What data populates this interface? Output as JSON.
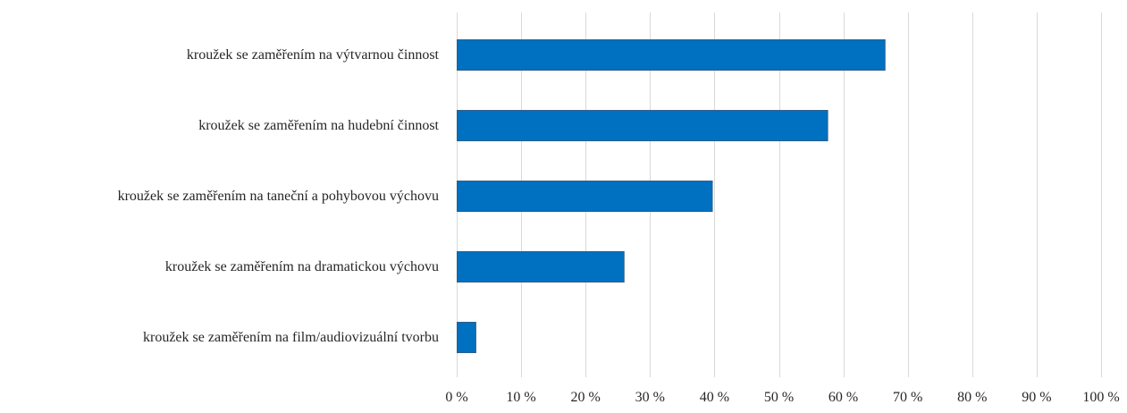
{
  "chart_data": {
    "type": "bar",
    "orientation": "horizontal",
    "categories": [
      "kroužek se zaměřením na výtvarnou činnost",
      "kroužek se zaměřením na hudební činnost",
      "kroužek se zaměřením na taneční a pohybovou výchovu",
      "kroužek se zaměřením na dramatickou výchovu",
      "kroužek se zaměřením na film/audiovizuální tvorbu"
    ],
    "values": [
      66.4,
      57.5,
      39.6,
      25.9,
      2.9
    ],
    "xlim": [
      0,
      100
    ],
    "x_ticks": [
      0,
      10,
      20,
      30,
      40,
      50,
      60,
      70,
      80,
      90,
      100
    ],
    "tick_labels": [
      "0 %",
      "10 %",
      "20 %",
      "30 %",
      "40 %",
      "50 %",
      "60 %",
      "70 %",
      "80 %",
      "90 %",
      "100 %"
    ],
    "grid": true,
    "legend": "none",
    "colors": {
      "bar_fill": "#0070c0",
      "grid": "#d9d9d9",
      "text": "#262626"
    }
  }
}
